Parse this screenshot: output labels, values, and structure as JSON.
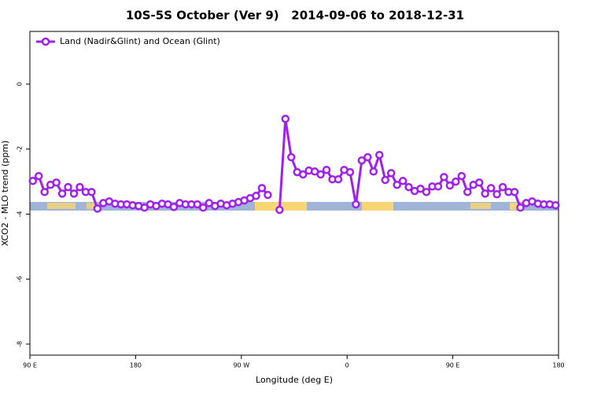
{
  "chart_data": {
    "type": "line",
    "title": "10S-5S October (Ver 9)   2014-09-06 to 2018-12-31",
    "x_label": "Longitude (deg E)",
    "y_label": "XCO2 - MLO trend (ppm)",
    "xlim": [
      90,
      540
    ],
    "ylim": [
      -8.34,
      1.62
    ],
    "xticks": [
      {
        "value": 90,
        "label": "90 E"
      },
      {
        "value": 180,
        "label": "180"
      },
      {
        "value": 270,
        "label": "90 W"
      },
      {
        "value": 360,
        "label": "0"
      },
      {
        "value": 450,
        "label": "90 E"
      },
      {
        "value": 540,
        "label": "180"
      }
    ],
    "yticks": [
      0,
      -2,
      -4,
      -6,
      -8
    ],
    "legend": "top-left",
    "grid": false,
    "x": [
      92.5,
      97.5,
      102.5,
      107.5,
      112.5,
      117.5,
      122.5,
      127.5,
      132.5,
      137.5,
      142.5,
      147.5,
      152.5,
      157.5,
      162.5,
      167.5,
      172.5,
      177.5,
      182.5,
      187.5,
      192.5,
      197.5,
      202.5,
      207.5,
      212.5,
      217.5,
      222.5,
      227.5,
      232.5,
      237.5,
      242.5,
      247.5,
      252.5,
      257.5,
      262.5,
      267.5,
      272.5,
      277.5,
      282.5,
      287.5,
      292.5,
      297.5,
      302.5,
      307.5,
      312.5,
      317.5,
      322.5,
      327.5,
      332.5,
      337.5,
      342.5,
      347.5,
      352.5,
      357.5,
      362.5,
      367.5,
      372.5,
      377.5,
      382.5,
      387.5,
      392.5,
      397.5,
      402.5,
      407.5,
      412.5,
      417.5,
      422.5,
      427.5,
      432.5,
      437.5,
      442.5,
      447.5,
      452.5,
      457.5,
      462.5,
      467.5,
      472.5,
      477.5,
      482.5,
      487.5,
      492.5,
      497.5,
      502.5,
      507.5,
      512.5,
      517.5,
      522.5,
      527.5,
      532.5,
      537.5
    ],
    "series": [
      {
        "name": "Land (Nadir&Glint) and Ocean (Glint)",
        "color": "#a020f0",
        "values": [
          -2.98,
          -2.83,
          -3.32,
          -3.1,
          -3.03,
          -3.37,
          -3.17,
          -3.37,
          -3.17,
          -3.32,
          -3.32,
          -3.83,
          -3.66,
          -3.61,
          -3.68,
          -3.7,
          -3.7,
          -3.73,
          -3.75,
          -3.8,
          -3.7,
          -3.75,
          -3.68,
          -3.7,
          -3.78,
          -3.66,
          -3.7,
          -3.7,
          -3.7,
          -3.8,
          -3.66,
          -3.75,
          -3.68,
          -3.73,
          -3.68,
          -3.63,
          -3.58,
          -3.51,
          -3.44,
          -3.2,
          -3.41,
          null,
          -3.87,
          -1.07,
          -2.25,
          -2.71,
          -2.78,
          -2.66,
          -2.69,
          -2.78,
          -2.64,
          -2.93,
          -2.93,
          -2.64,
          -2.71,
          -3.7,
          -2.35,
          -2.25,
          -2.69,
          -2.18,
          -2.95,
          -2.74,
          -3.1,
          -2.98,
          -3.17,
          -3.29,
          -3.22,
          -3.32,
          -3.15,
          -3.15,
          -2.86,
          -3.12,
          -3.0,
          -2.83,
          -3.32,
          -3.1,
          -3.03,
          -3.37,
          -3.2,
          -3.39,
          -3.17,
          -3.32,
          -3.32,
          -3.8,
          -3.66,
          -3.61,
          -3.68,
          -3.7,
          -3.7,
          -3.73
        ]
      }
    ]
  }
}
